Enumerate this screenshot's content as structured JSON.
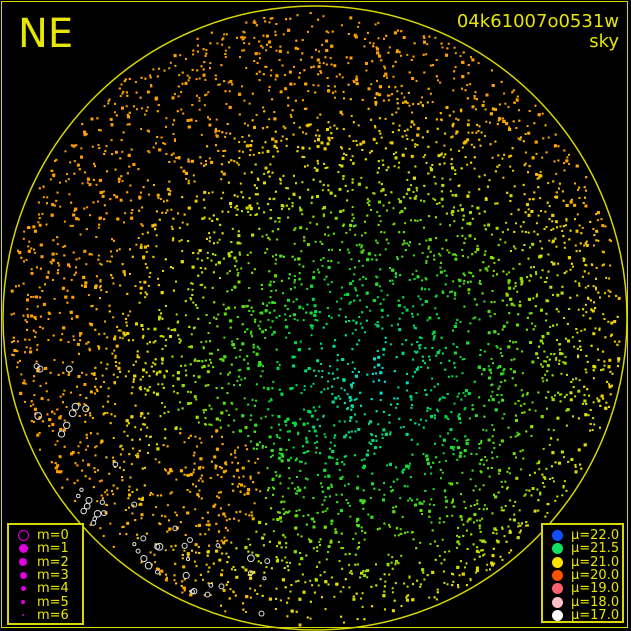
{
  "direction_label": "NE",
  "title": {
    "line1": "04k61007o0531w",
    "line2": "sky"
  },
  "magnitude_legend": [
    {
      "label": "m=0",
      "style": "ring",
      "color": "#e000e0"
    },
    {
      "label": "m=1",
      "style": "filled",
      "color": "#e000e0"
    },
    {
      "label": "m=2",
      "style": "filled",
      "color": "#e000e0"
    },
    {
      "label": "m=3",
      "style": "filled",
      "color": "#e000e0"
    },
    {
      "label": "m=4",
      "style": "filled",
      "color": "#e000e0"
    },
    {
      "label": "m=5",
      "style": "filled",
      "color": "#e000e0"
    },
    {
      "label": "m=6",
      "style": "filled",
      "color": "#e000e0"
    }
  ],
  "brightness_legend": [
    {
      "label": "μ=22.0",
      "color": "#1050ff"
    },
    {
      "label": "μ=21.5",
      "color": "#10e060"
    },
    {
      "label": "μ=21.0",
      "color": "#ffe000"
    },
    {
      "label": "μ=20.0",
      "color": "#ff5000"
    },
    {
      "label": "μ=19.0",
      "color": "#ff6070"
    },
    {
      "label": "μ=18.0",
      "color": "#ffc0c8"
    },
    {
      "label": "μ=17.0",
      "color": "#ffffff"
    }
  ],
  "colors": {
    "frame": "#d8d800",
    "text": "#e6e600",
    "background": "#000000"
  }
}
